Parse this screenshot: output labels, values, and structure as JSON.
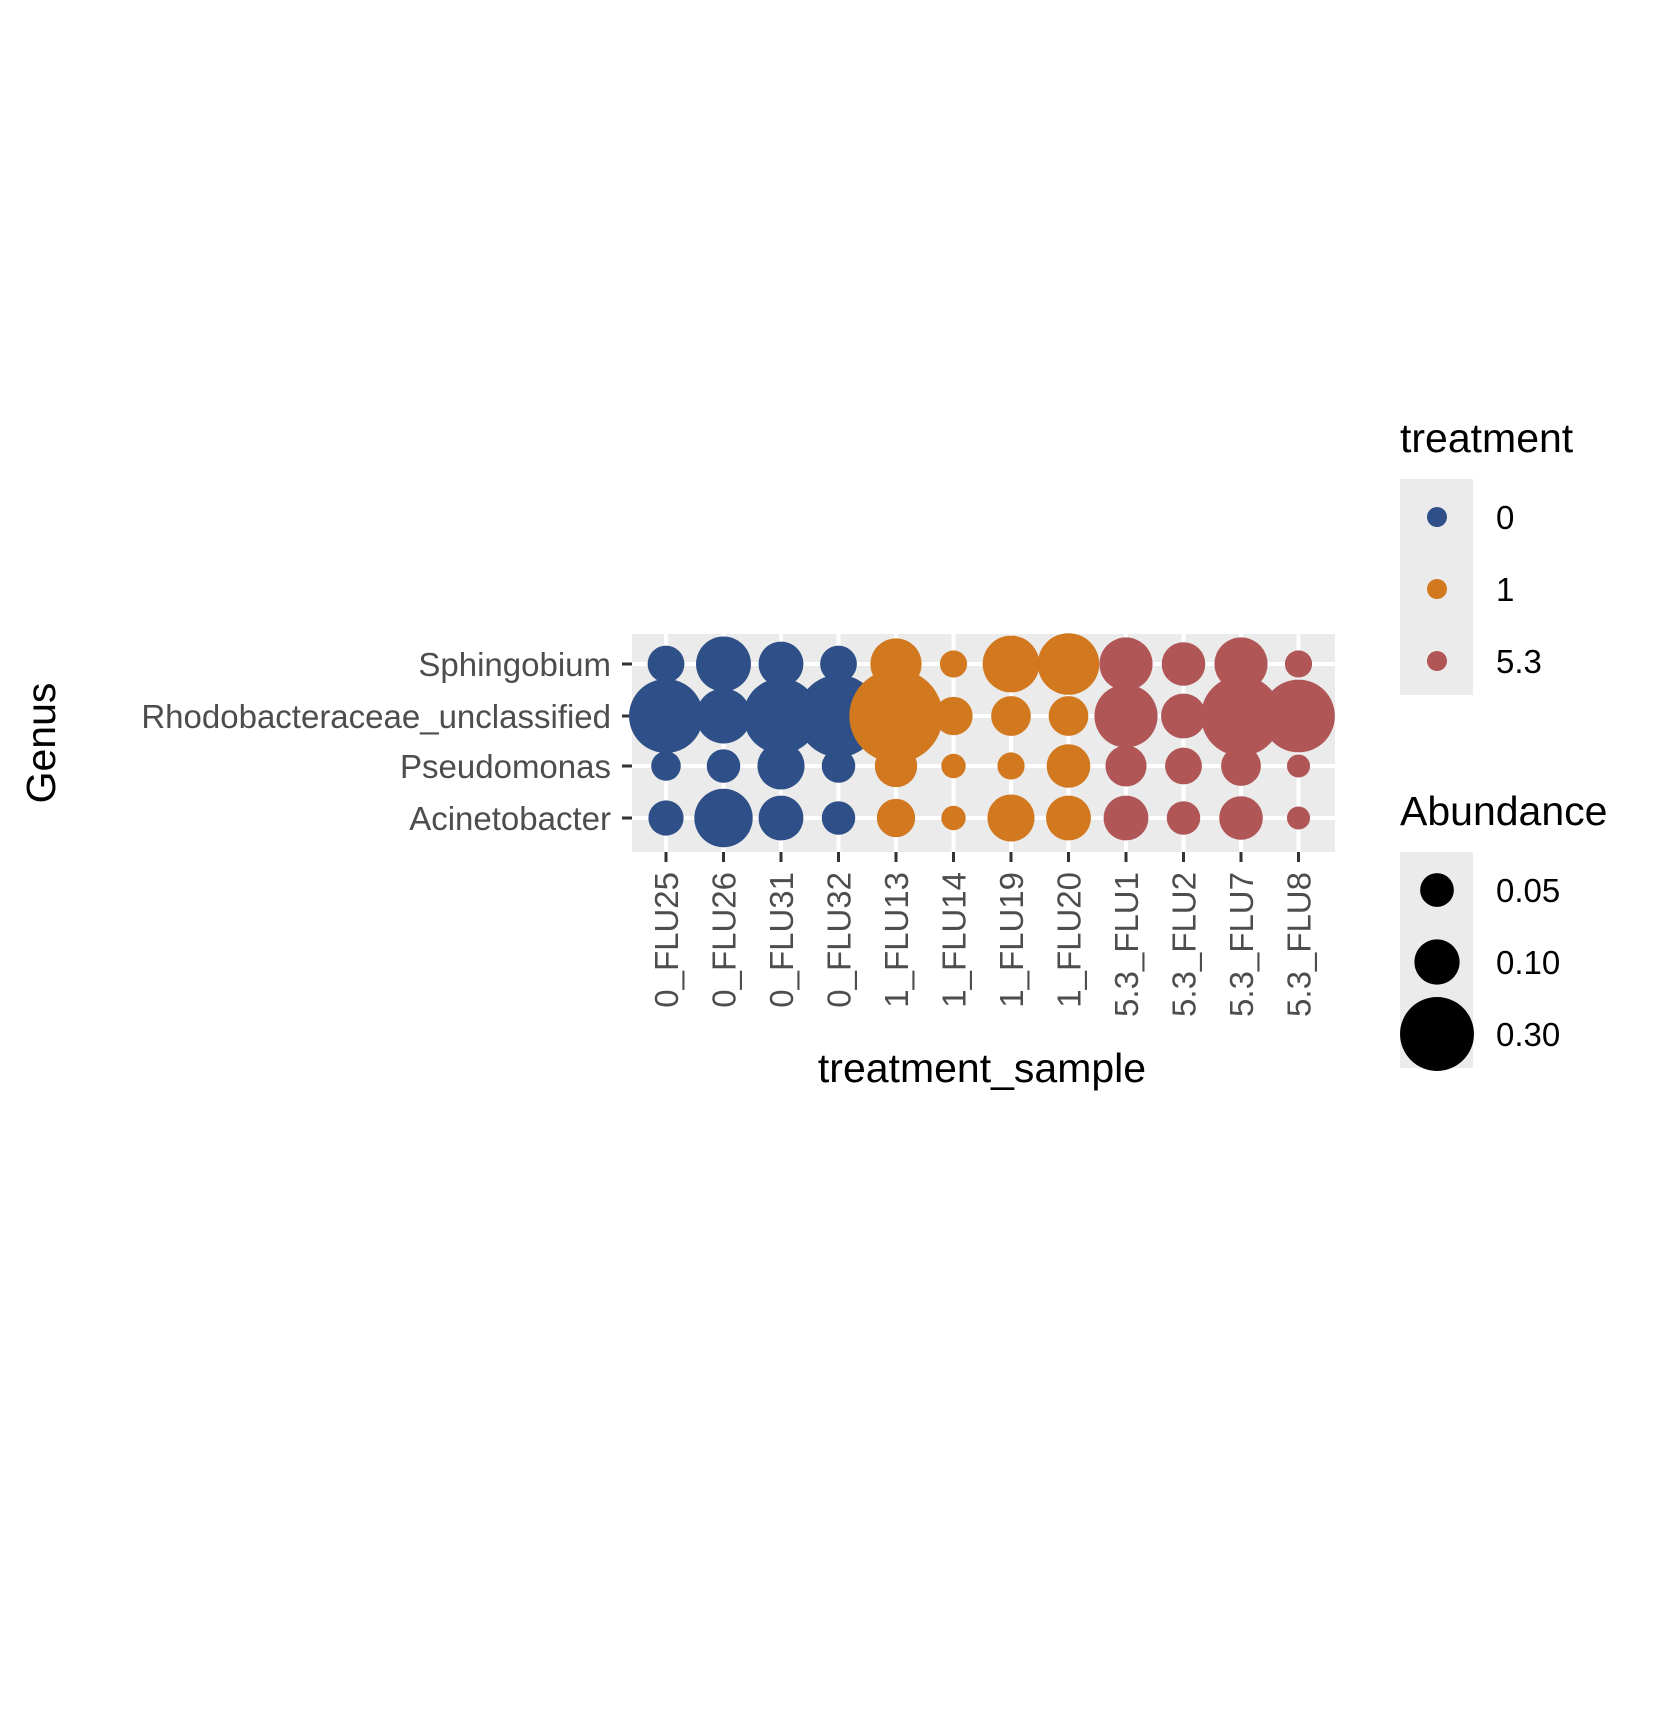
{
  "chart_data": {
    "type": "scatter",
    "xlabel": "treatment_sample",
    "ylabel": "Genus",
    "categories_x": [
      "0_FLU25",
      "0_FLU26",
      "0_FLU31",
      "0_FLU32",
      "1_FLU13",
      "1_FLU14",
      "1_FLU19",
      "1_FLU20",
      "5.3_FLU1",
      "5.3_FLU2",
      "5.3_FLU7",
      "5.3_FLU8"
    ],
    "categories_y": [
      "Acinetobacter",
      "Pseudomonas",
      "Rhodobacteraceae_unclassified",
      "Sphingobium"
    ],
    "sample_treatment": [
      "0",
      "0",
      "0",
      "0",
      "1",
      "1",
      "1",
      "1",
      "5.3",
      "5.3",
      "5.3",
      "5.3"
    ],
    "series": [
      {
        "genus": "Sphingobium",
        "values": [
          0.04,
          0.12,
          0.07,
          0.04,
          0.1,
          0.015,
          0.13,
          0.16,
          0.11,
          0.065,
          0.11,
          0.015
        ]
      },
      {
        "genus": "Rhodobacteraceae_unclassified",
        "values": [
          0.25,
          0.12,
          0.26,
          0.32,
          0.43,
          0.045,
          0.05,
          0.05,
          0.17,
          0.07,
          0.3,
          0.24
        ]
      },
      {
        "genus": "Pseudomonas",
        "values": [
          0.02,
          0.03,
          0.08,
          0.03,
          0.06,
          0.01,
          0.015,
          0.065,
          0.055,
          0.04,
          0.05,
          0.008
        ]
      },
      {
        "genus": "Acinetobacter",
        "values": [
          0.035,
          0.14,
          0.07,
          0.03,
          0.045,
          0.01,
          0.08,
          0.07,
          0.07,
          0.03,
          0.065,
          0.008
        ]
      }
    ],
    "legend_color": {
      "title": "treatment",
      "items": [
        {
          "label": "0",
          "color": "#2e4f88"
        },
        {
          "label": "1",
          "color": "#d2781e"
        },
        {
          "label": "5.3",
          "color": "#b15656"
        }
      ]
    },
    "legend_size": {
      "title": "Abundance",
      "items": [
        {
          "label": "0.05",
          "value": 0.05
        },
        {
          "label": "0.10",
          "value": 0.1
        },
        {
          "label": "0.30",
          "value": 0.3
        }
      ]
    },
    "legend_placement": "right",
    "grid": true,
    "panel_background": "#ebebeb"
  }
}
